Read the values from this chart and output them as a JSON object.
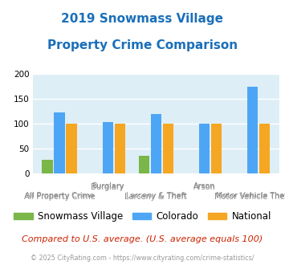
{
  "title_line1": "2019 Snowmass Village",
  "title_line2": "Property Crime Comparison",
  "title_color": "#1a6fba",
  "title_fontsize": 11,
  "snowmass_values": [
    27,
    0,
    35,
    0,
    0
  ],
  "colorado_values": [
    123,
    103,
    120,
    100,
    175
  ],
  "national_values": [
    100,
    100,
    100,
    100,
    100
  ],
  "snowmass_color": "#7ab648",
  "colorado_color": "#4da6f5",
  "national_color": "#f5a623",
  "ylim": [
    0,
    200
  ],
  "yticks": [
    0,
    50,
    100,
    150,
    200
  ],
  "plot_bg_color": "#ddeef6",
  "top_labels": [
    "",
    "Burglary",
    "",
    "Arson",
    ""
  ],
  "bottom_labels": [
    "All Property Crime",
    "",
    "Larceny & Theft",
    "",
    "Motor Vehicle Theft"
  ],
  "legend_labels": [
    "Snowmass Village",
    "Colorado",
    "National"
  ],
  "note_text": "Compared to U.S. average. (U.S. average equals 100)",
  "note_color": "#cc2200",
  "footer_text": "© 2025 CityRating.com - https://www.cityrating.com/crime-statistics/",
  "footer_color": "#999999",
  "bar_width": 0.22,
  "bar_gap": 0.03
}
